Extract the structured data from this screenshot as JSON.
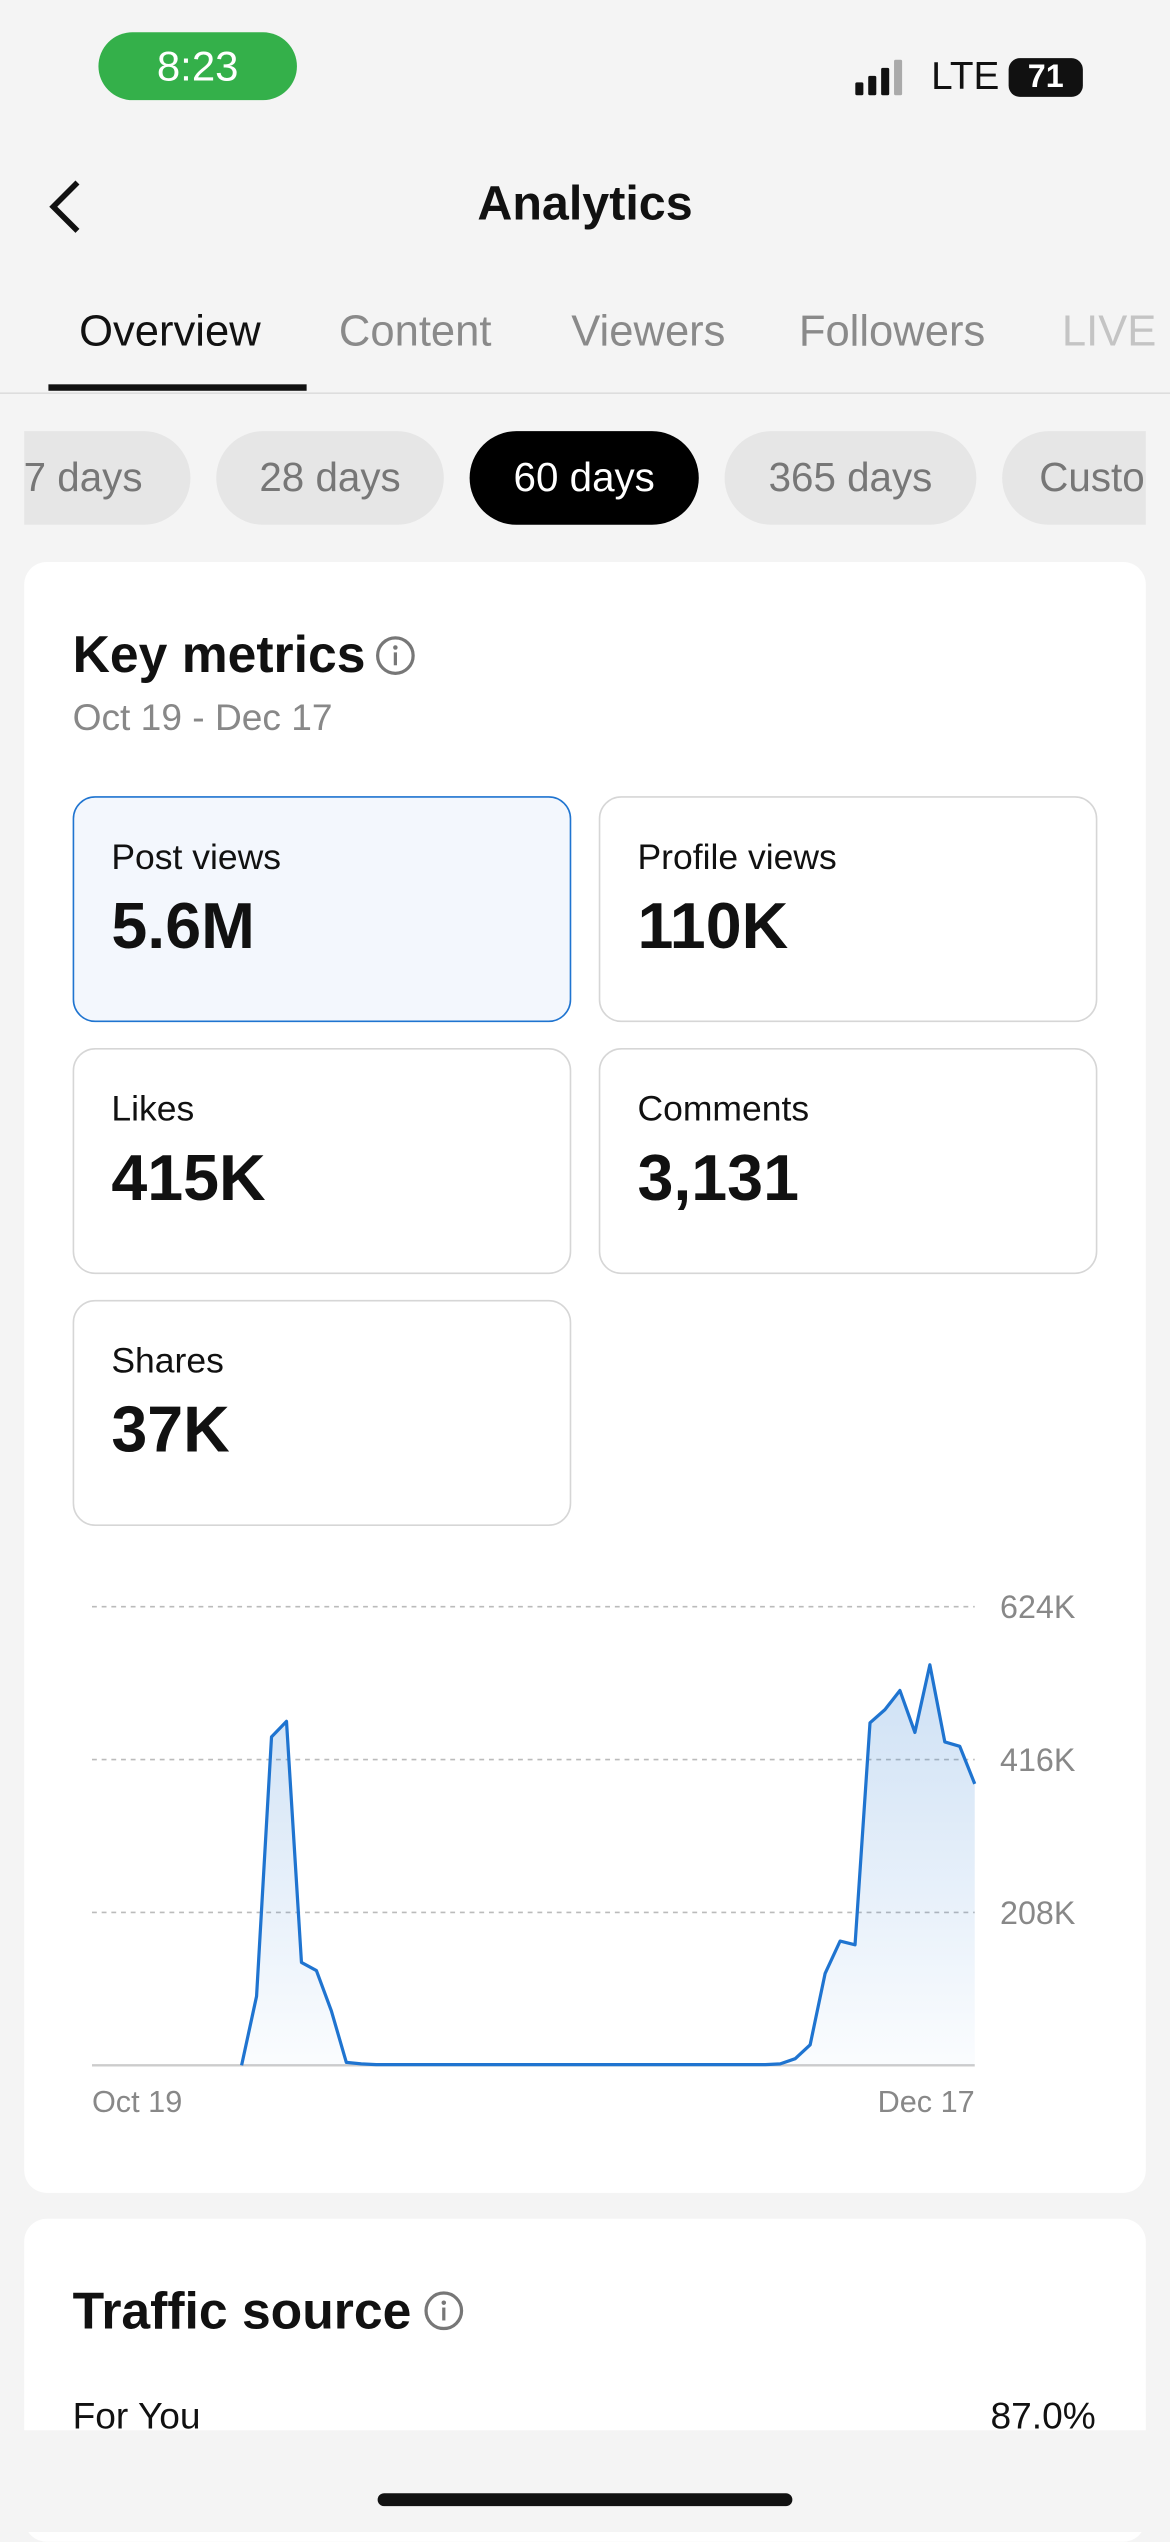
{
  "status_bar": {
    "time": "8:23",
    "network": "LTE",
    "battery": "71"
  },
  "header": {
    "title": "Analytics"
  },
  "tabs": [
    "Overview",
    "Content",
    "Viewers",
    "Followers",
    "LIVE"
  ],
  "periods": [
    "7 days",
    "28 days",
    "60 days",
    "365 days",
    "Custom"
  ],
  "key_metrics": {
    "title": "Key metrics",
    "date_range": "Oct 19 - Dec 17",
    "cards": [
      {
        "label": "Post views",
        "value": "5.6M"
      },
      {
        "label": "Profile views",
        "value": "110K"
      },
      {
        "label": "Likes",
        "value": "415K"
      },
      {
        "label": "Comments",
        "value": "3,131"
      },
      {
        "label": "Shares",
        "value": "37K"
      }
    ]
  },
  "chart_data": {
    "type": "line",
    "color": "#1f74d0",
    "categories": [
      "Oct 19",
      null,
      null,
      null,
      null,
      null,
      null,
      null,
      null,
      null,
      null,
      null,
      null,
      null,
      null,
      null,
      null,
      null,
      null,
      null,
      null,
      null,
      null,
      null,
      null,
      null,
      null,
      null,
      null,
      null,
      null,
      null,
      null,
      null,
      null,
      null,
      null,
      null,
      null,
      null,
      null,
      null,
      null,
      null,
      null,
      null,
      null,
      null,
      null,
      null,
      null,
      null,
      null,
      null,
      null,
      null,
      null,
      null,
      null,
      "Dec 17"
    ],
    "values": [
      null,
      null,
      null,
      null,
      null,
      null,
      null,
      null,
      null,
      null,
      0,
      94000,
      447000,
      468000,
      140000,
      129000,
      74000,
      4000,
      2000,
      1000,
      1000,
      1000,
      1000,
      1000,
      1000,
      1000,
      1000,
      1000,
      1000,
      1000,
      1000,
      1000,
      1000,
      1000,
      1000,
      1000,
      1000,
      1000,
      1000,
      1000,
      1000,
      1000,
      1000,
      1000,
      1000,
      1000,
      2000,
      9000,
      28000,
      125000,
      169000,
      164000,
      466000,
      484000,
      510000,
      453000,
      545000,
      440000,
      434000,
      383000
    ],
    "ylim": [
      0,
      624000
    ],
    "yticks": [
      {
        "value": 208000,
        "label": "208K"
      },
      {
        "value": 416000,
        "label": "416K"
      },
      {
        "value": 624000,
        "label": "624K"
      }
    ],
    "grid": true
  },
  "traffic_source": {
    "title": "Traffic source",
    "rows": [
      {
        "label": "For You",
        "value": "87.0%"
      }
    ]
  }
}
